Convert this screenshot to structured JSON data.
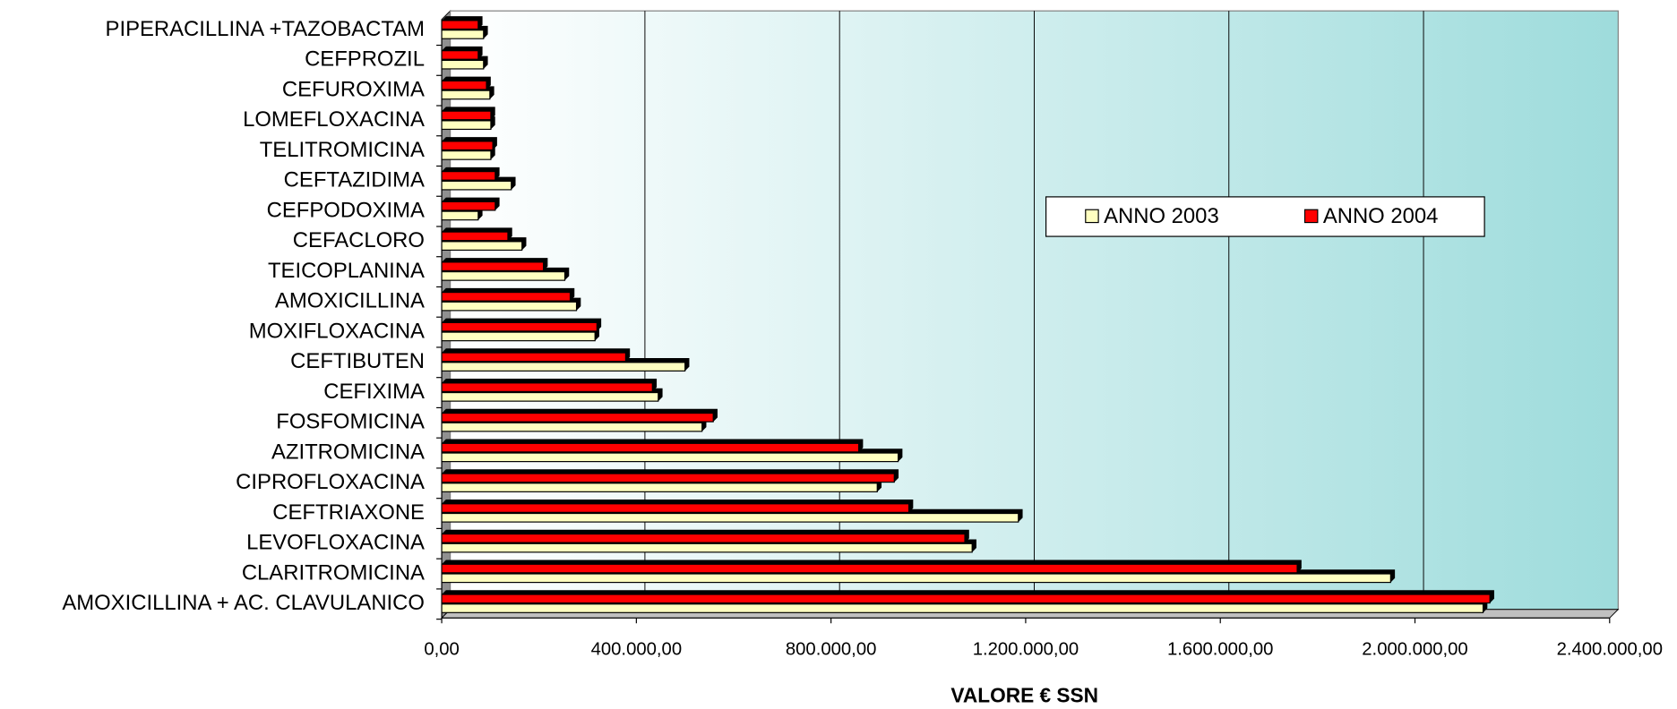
{
  "chart_data": {
    "type": "bar",
    "orientation": "horizontal",
    "x_axis_label": "VALORE € SSN",
    "categories": [
      "AMOXICILLINA + AC. CLAVULANICO",
      "CLARITROMICINA",
      "LEVOFLOXACINA",
      "CEFTRIAXONE",
      "CIPROFLOXACINA",
      "AZITROMICINA",
      "FOSFOMICINA",
      "CEFIXIMA",
      "CEFTIBUTEN",
      "MOXIFLOXACINA",
      "AMOXICILLINA",
      "TEICOPLANINA",
      "CEFACLORO",
      "CEFPODOXIMA",
      "CEFTAZIDIMA",
      "TELITROMICINA",
      "LOMEFLOXACINA",
      "CEFUROXIMA",
      "CEFPROZIL",
      "PIPERACILLINA +TAZOBACTAM"
    ],
    "series": [
      {
        "name": "ANNO 2003",
        "color": "#ffffc0",
        "values": [
          2140000,
          1950000,
          1090000,
          1185000,
          895000,
          938000,
          535000,
          445000,
          500000,
          315000,
          277000,
          253000,
          165000,
          75000,
          143000,
          101000,
          101000,
          99000,
          86000,
          86000
        ]
      },
      {
        "name": "ANNO 2004",
        "color": "#ff0000",
        "values": [
          2154000,
          1758000,
          1075000,
          960000,
          930000,
          857000,
          558000,
          433000,
          378000,
          319000,
          264000,
          209000,
          136000,
          110000,
          110000,
          105000,
          101000,
          92000,
          75000,
          75000
        ]
      }
    ],
    "xlim": [
      0,
      2400000
    ],
    "xticks": [
      {
        "value": 0,
        "label": "0,00"
      },
      {
        "value": 400000,
        "label": "400.000,00"
      },
      {
        "value": 800000,
        "label": "800.000,00"
      },
      {
        "value": 1200000,
        "label": "1.200.000,00"
      },
      {
        "value": 1600000,
        "label": "1.600.000,00"
      },
      {
        "value": 2000000,
        "label": "2.000.000,00"
      },
      {
        "value": 2400000,
        "label": "2.400.000,00"
      }
    ],
    "grid": true,
    "legend": "upper right"
  }
}
